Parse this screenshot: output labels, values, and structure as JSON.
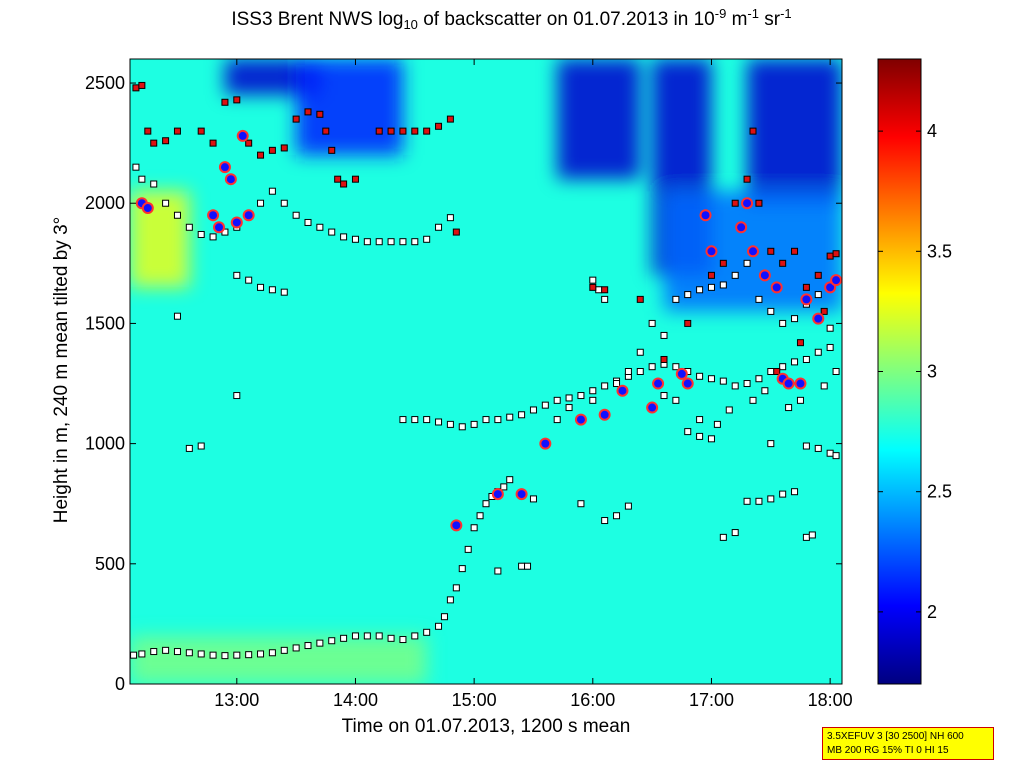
{
  "chart_data": {
    "type": "heatmap",
    "title": {
      "prefix": "ISS3 Brent NWS log",
      "sub": "10",
      "mid": " of backscatter on 01.07.2013 in 10",
      "exp1": "-9",
      "unit1": " m",
      "exp2": "-1",
      "unit2": " sr",
      "exp3": "-1"
    },
    "xlabel": "Time on 01.07.2013, 1200 s mean",
    "ylabel": "Height in m, 240 m mean tilted by 3°",
    "x_range_hours": [
      12.1,
      18.1
    ],
    "ylim": [
      0,
      2600
    ],
    "x_ticks": [
      {
        "v": 13,
        "label": "13:00"
      },
      {
        "v": 14,
        "label": "14:00"
      },
      {
        "v": 15,
        "label": "15:00"
      },
      {
        "v": 16,
        "label": "16:00"
      },
      {
        "v": 17,
        "label": "17:00"
      },
      {
        "v": 18,
        "label": "18:00"
      }
    ],
    "y_ticks": [
      {
        "v": 0,
        "label": "0"
      },
      {
        "v": 500,
        "label": "500"
      },
      {
        "v": 1000,
        "label": "1000"
      },
      {
        "v": 1500,
        "label": "1500"
      },
      {
        "v": 2000,
        "label": "2000"
      },
      {
        "v": 2500,
        "label": "2500"
      }
    ],
    "colorbar": {
      "range": [
        1.7,
        4.3
      ],
      "ticks": [
        {
          "v": 2,
          "label": "2"
        },
        {
          "v": 2.5,
          "label": "2.5"
        },
        {
          "v": 3,
          "label": "3"
        },
        {
          "v": 3.5,
          "label": "3.5"
        },
        {
          "v": 4,
          "label": "4"
        }
      ],
      "colormap": "jet"
    },
    "background_level": 2.75,
    "low_regions": [
      {
        "t0": 12.9,
        "t1": 13.7,
        "h0": 2450,
        "h1": 2600,
        "v": 1.9
      },
      {
        "t0": 13.5,
        "t1": 14.4,
        "h0": 2200,
        "h1": 2600,
        "v": 2.1
      },
      {
        "t0": 15.7,
        "t1": 16.4,
        "h0": 2100,
        "h1": 2600,
        "v": 1.9
      },
      {
        "t0": 16.5,
        "t1": 17.0,
        "h0": 1700,
        "h1": 2600,
        "v": 1.9
      },
      {
        "t0": 17.3,
        "t1": 18.1,
        "h0": 2000,
        "h1": 2600,
        "v": 1.9
      },
      {
        "t0": 16.6,
        "t1": 18.1,
        "h0": 1550,
        "h1": 2050,
        "v": 2.3
      }
    ],
    "high_regions": [
      {
        "t0": 12.1,
        "t1": 12.6,
        "h0": 1650,
        "h1": 2050,
        "v": 3.3
      },
      {
        "t0": 12.1,
        "t1": 14.6,
        "h0": 0,
        "h1": 200,
        "v": 3.0
      }
    ],
    "series": [
      {
        "name": "",
        "marker": "square-white",
        "points": [
          [
            12.13,
            120
          ],
          [
            12.2,
            125
          ],
          [
            12.3,
            135
          ],
          [
            12.4,
            140
          ],
          [
            12.5,
            135
          ],
          [
            12.6,
            130
          ],
          [
            12.7,
            125
          ],
          [
            12.8,
            120
          ],
          [
            12.9,
            118
          ],
          [
            13.0,
            120
          ],
          [
            13.1,
            122
          ],
          [
            13.2,
            125
          ],
          [
            13.3,
            130
          ],
          [
            13.4,
            140
          ],
          [
            13.5,
            150
          ],
          [
            13.6,
            160
          ],
          [
            13.7,
            170
          ],
          [
            13.8,
            180
          ],
          [
            13.9,
            190
          ],
          [
            14.0,
            200
          ],
          [
            14.1,
            200
          ],
          [
            14.2,
            200
          ],
          [
            14.3,
            190
          ],
          [
            14.4,
            185
          ],
          [
            14.5,
            200
          ],
          [
            14.6,
            215
          ],
          [
            14.7,
            240
          ],
          [
            14.75,
            280
          ],
          [
            14.8,
            350
          ],
          [
            14.85,
            400
          ],
          [
            14.9,
            480
          ],
          [
            14.95,
            560
          ],
          [
            15.0,
            650
          ],
          [
            15.05,
            700
          ],
          [
            15.1,
            750
          ],
          [
            15.15,
            780
          ],
          [
            15.2,
            800
          ],
          [
            15.25,
            820
          ],
          [
            15.3,
            850
          ],
          [
            12.15,
            2150
          ],
          [
            12.2,
            2100
          ],
          [
            12.3,
            2080
          ],
          [
            12.4,
            2000
          ],
          [
            12.5,
            1950
          ],
          [
            12.6,
            1900
          ],
          [
            12.7,
            1870
          ],
          [
            12.8,
            1860
          ],
          [
            12.9,
            1880
          ],
          [
            13.0,
            1900
          ],
          [
            13.1,
            1950
          ],
          [
            13.2,
            2000
          ],
          [
            13.3,
            2050
          ],
          [
            13.4,
            2000
          ],
          [
            13.5,
            1950
          ],
          [
            13.6,
            1920
          ],
          [
            13.7,
            1900
          ],
          [
            13.8,
            1880
          ],
          [
            13.9,
            1860
          ],
          [
            14.0,
            1850
          ],
          [
            14.1,
            1840
          ],
          [
            14.2,
            1840
          ],
          [
            14.3,
            1840
          ],
          [
            14.4,
            1840
          ],
          [
            14.5,
            1840
          ],
          [
            14.6,
            1850
          ],
          [
            14.7,
            1900
          ],
          [
            14.8,
            1940
          ],
          [
            13.0,
            1700
          ],
          [
            13.1,
            1680
          ],
          [
            13.2,
            1650
          ],
          [
            13.3,
            1640
          ],
          [
            13.4,
            1630
          ],
          [
            12.5,
            1530
          ],
          [
            13.0,
            1200
          ],
          [
            12.6,
            980
          ],
          [
            12.7,
            990
          ],
          [
            14.4,
            1100
          ],
          [
            14.5,
            1100
          ],
          [
            14.6,
            1100
          ],
          [
            14.7,
            1090
          ],
          [
            14.8,
            1080
          ],
          [
            14.9,
            1070
          ],
          [
            15.0,
            1080
          ],
          [
            15.1,
            1100
          ],
          [
            15.2,
            1100
          ],
          [
            15.3,
            1110
          ],
          [
            15.4,
            1120
          ],
          [
            15.5,
            1140
          ],
          [
            15.6,
            1160
          ],
          [
            15.7,
            1180
          ],
          [
            15.8,
            1190
          ],
          [
            15.9,
            1200
          ],
          [
            16.0,
            1220
          ],
          [
            16.1,
            1240
          ],
          [
            16.2,
            1260
          ],
          [
            16.3,
            1280
          ],
          [
            16.4,
            1300
          ],
          [
            16.5,
            1320
          ],
          [
            16.6,
            1330
          ],
          [
            16.7,
            1320
          ],
          [
            16.8,
            1300
          ],
          [
            16.9,
            1280
          ],
          [
            17.0,
            1270
          ],
          [
            17.1,
            1260
          ],
          [
            17.2,
            1240
          ],
          [
            17.3,
            1250
          ],
          [
            17.4,
            1270
          ],
          [
            17.5,
            1300
          ],
          [
            17.6,
            1320
          ],
          [
            17.7,
            1340
          ],
          [
            17.8,
            1350
          ],
          [
            17.9,
            1380
          ],
          [
            18.0,
            1400
          ],
          [
            15.5,
            770
          ],
          [
            15.9,
            750
          ],
          [
            16.1,
            680
          ],
          [
            16.2,
            700
          ],
          [
            16.3,
            740
          ],
          [
            17.1,
            610
          ],
          [
            17.2,
            630
          ],
          [
            17.3,
            760
          ],
          [
            17.4,
            760
          ],
          [
            17.5,
            770
          ],
          [
            17.6,
            790
          ],
          [
            17.7,
            800
          ],
          [
            17.8,
            610
          ],
          [
            17.85,
            620
          ],
          [
            15.4,
            490
          ],
          [
            15.45,
            490
          ],
          [
            15.2,
            470
          ],
          [
            16.7,
            1600
          ],
          [
            16.8,
            1620
          ],
          [
            16.9,
            1640
          ],
          [
            17.0,
            1650
          ],
          [
            17.1,
            1660
          ],
          [
            17.2,
            1700
          ],
          [
            17.3,
            1750
          ],
          [
            17.4,
            1600
          ],
          [
            17.5,
            1550
          ],
          [
            17.6,
            1500
          ],
          [
            17.7,
            1520
          ],
          [
            17.8,
            1580
          ],
          [
            17.9,
            1620
          ],
          [
            18.0,
            1480
          ],
          [
            16.5,
            1500
          ],
          [
            16.6,
            1450
          ],
          [
            16.4,
            1380
          ],
          [
            16.3,
            1300
          ],
          [
            16.2,
            1250
          ],
          [
            16.0,
            1180
          ],
          [
            15.8,
            1150
          ],
          [
            15.7,
            1100
          ],
          [
            16.8,
            1050
          ],
          [
            16.9,
            1030
          ],
          [
            17.0,
            1020
          ],
          [
            17.5,
            1000
          ],
          [
            17.8,
            990
          ],
          [
            17.9,
            980
          ],
          [
            18.0,
            960
          ],
          [
            18.05,
            950
          ],
          [
            16.0,
            1680
          ],
          [
            16.05,
            1640
          ],
          [
            16.1,
            1600
          ],
          [
            16.6,
            1200
          ],
          [
            16.7,
            1180
          ],
          [
            16.9,
            1100
          ],
          [
            17.05,
            1080
          ],
          [
            17.15,
            1140
          ],
          [
            17.35,
            1180
          ],
          [
            17.45,
            1220
          ],
          [
            17.65,
            1150
          ],
          [
            17.75,
            1180
          ],
          [
            17.95,
            1240
          ],
          [
            18.05,
            1300
          ]
        ]
      },
      {
        "name": "",
        "marker": "square-red",
        "points": [
          [
            12.15,
            2480
          ],
          [
            12.2,
            2490
          ],
          [
            12.25,
            2300
          ],
          [
            12.3,
            2250
          ],
          [
            12.4,
            2260
          ],
          [
            12.5,
            2300
          ],
          [
            12.7,
            2300
          ],
          [
            12.8,
            2250
          ],
          [
            12.9,
            2420
          ],
          [
            13.0,
            2430
          ],
          [
            13.1,
            2250
          ],
          [
            13.2,
            2200
          ],
          [
            13.3,
            2220
          ],
          [
            13.4,
            2230
          ],
          [
            13.5,
            2350
          ],
          [
            13.6,
            2380
          ],
          [
            13.7,
            2370
          ],
          [
            13.75,
            2300
          ],
          [
            13.8,
            2220
          ],
          [
            13.85,
            2100
          ],
          [
            13.9,
            2080
          ],
          [
            14.0,
            2100
          ],
          [
            14.2,
            2300
          ],
          [
            14.3,
            2300
          ],
          [
            14.4,
            2300
          ],
          [
            14.5,
            2300
          ],
          [
            14.6,
            2300
          ],
          [
            14.7,
            2320
          ],
          [
            14.8,
            2350
          ],
          [
            14.85,
            1880
          ],
          [
            16.0,
            1650
          ],
          [
            16.1,
            1640
          ],
          [
            16.4,
            1600
          ],
          [
            16.6,
            1350
          ],
          [
            16.8,
            1500
          ],
          [
            17.0,
            1700
          ],
          [
            17.1,
            1750
          ],
          [
            17.2,
            2000
          ],
          [
            17.3,
            2100
          ],
          [
            17.35,
            2300
          ],
          [
            17.4,
            2000
          ],
          [
            17.5,
            1800
          ],
          [
            17.6,
            1750
          ],
          [
            17.7,
            1800
          ],
          [
            17.8,
            1650
          ],
          [
            17.9,
            1700
          ],
          [
            18.0,
            1780
          ],
          [
            18.05,
            1790
          ],
          [
            17.95,
            1550
          ],
          [
            17.75,
            1420
          ],
          [
            17.55,
            1300
          ]
        ]
      },
      {
        "name": "",
        "marker": "dot-blue",
        "points": [
          [
            12.2,
            2000
          ],
          [
            12.25,
            1980
          ],
          [
            12.8,
            1950
          ],
          [
            12.85,
            1900
          ],
          [
            12.9,
            2150
          ],
          [
            12.95,
            2100
          ],
          [
            13.0,
            1920
          ],
          [
            13.05,
            2280
          ],
          [
            13.1,
            1950
          ],
          [
            14.85,
            660
          ],
          [
            15.2,
            790
          ],
          [
            15.4,
            790
          ],
          [
            15.6,
            1000
          ],
          [
            15.9,
            1100
          ],
          [
            16.1,
            1120
          ],
          [
            16.25,
            1220
          ],
          [
            16.5,
            1150
          ],
          [
            16.55,
            1250
          ],
          [
            16.75,
            1290
          ],
          [
            16.8,
            1250
          ],
          [
            16.95,
            1950
          ],
          [
            17.0,
            1800
          ],
          [
            17.25,
            1900
          ],
          [
            17.3,
            2000
          ],
          [
            17.35,
            1800
          ],
          [
            17.45,
            1700
          ],
          [
            17.55,
            1650
          ],
          [
            17.6,
            1270
          ],
          [
            17.65,
            1250
          ],
          [
            17.75,
            1250
          ],
          [
            17.8,
            1600
          ],
          [
            17.9,
            1520
          ],
          [
            18.0,
            1650
          ],
          [
            18.05,
            1680
          ]
        ]
      }
    ],
    "annotation": [
      "3.5XEFUV 3 [30 2500] NH 600",
      "MB 200 RG 15% TI 0 HI 15"
    ]
  }
}
